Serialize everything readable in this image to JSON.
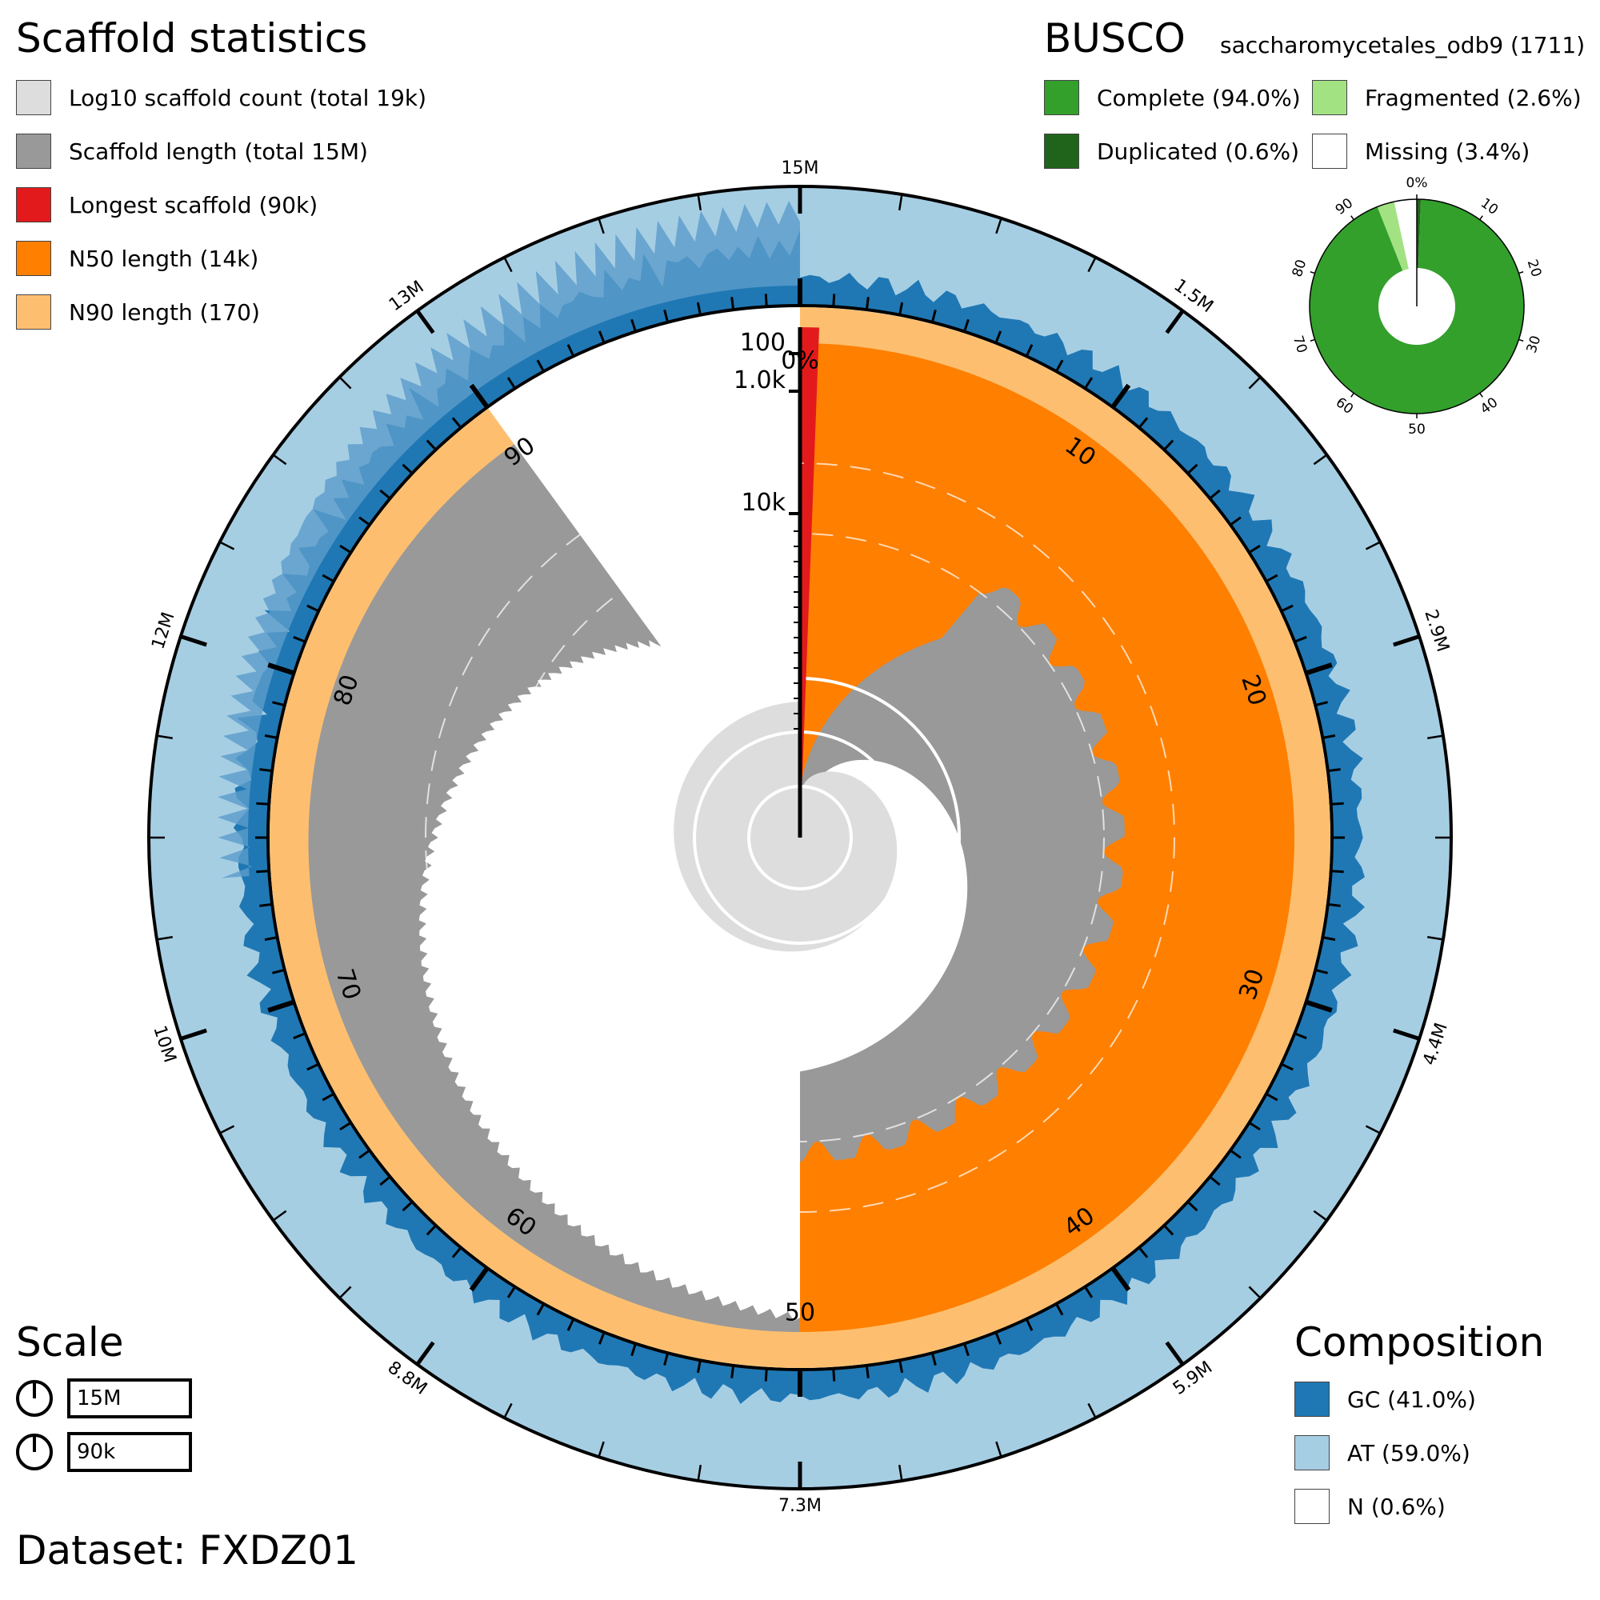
{
  "scaffold_stats": {
    "title": "Scaffold statistics",
    "legend": [
      {
        "label": "Log10 scaffold count (total 19k)",
        "color": "#dddddd"
      },
      {
        "label": "Scaffold length (total 15M)",
        "color": "#999999"
      },
      {
        "label": "Longest scaffold (90k)",
        "color": "#e31a1c"
      },
      {
        "label": "N50 length (14k)",
        "color": "#ff7f00"
      },
      {
        "label": "N90 length (170)",
        "color": "#fdbf6f"
      }
    ]
  },
  "busco": {
    "title": "BUSCO",
    "lineage": "saccharomycetales_odb9 (1711)",
    "legend": [
      {
        "label": "Complete (94.0%)",
        "color": "#33a02c"
      },
      {
        "label": "Fragmented (2.6%)",
        "color": "#a3e283"
      },
      {
        "label": "Duplicated (0.6%)",
        "color": "#20641c"
      },
      {
        "label": "Missing (3.4%)",
        "color": "#ffffff"
      }
    ],
    "ticks": [
      "0%",
      "10",
      "20",
      "30",
      "40",
      "50",
      "60",
      "70",
      "80",
      "90"
    ]
  },
  "scale": {
    "title": "Scale",
    "items": [
      "15M",
      "90k"
    ]
  },
  "composition": {
    "title": "Composition",
    "legend": [
      {
        "label": "GC (41.0%)",
        "color": "#1f78b4"
      },
      {
        "label": "AT (59.0%)",
        "color": "#a6cee3"
      },
      {
        "label": "N (0.6%)",
        "color": "#ffffff"
      }
    ]
  },
  "dataset": "Dataset: FXDZ01",
  "chart_data": {
    "type": "snail",
    "total_length": "15M",
    "scaffold_count": "19k",
    "longest_scaffold": "90k",
    "n50": "14k",
    "n90": "170",
    "n90_percent": 90,
    "gc_percent": 41.0,
    "at_percent": 59.0,
    "n_percent": 0.6,
    "busco_percentages": {
      "complete": 94.0,
      "duplicated": 0.6,
      "fragmented": 2.6,
      "missing": 3.4
    },
    "percent_ticks": [
      "0%",
      "10",
      "20",
      "30",
      "40",
      "50",
      "60",
      "70",
      "80",
      "90"
    ],
    "length_ticks": [
      "15M",
      "1.5M",
      "2.9M",
      "4.4M",
      "5.9M",
      "7.3M",
      "8.8M",
      "10M",
      "12M",
      "13M"
    ],
    "log_axis_ticks": [
      "100",
      "1.0k",
      "10k"
    ]
  }
}
